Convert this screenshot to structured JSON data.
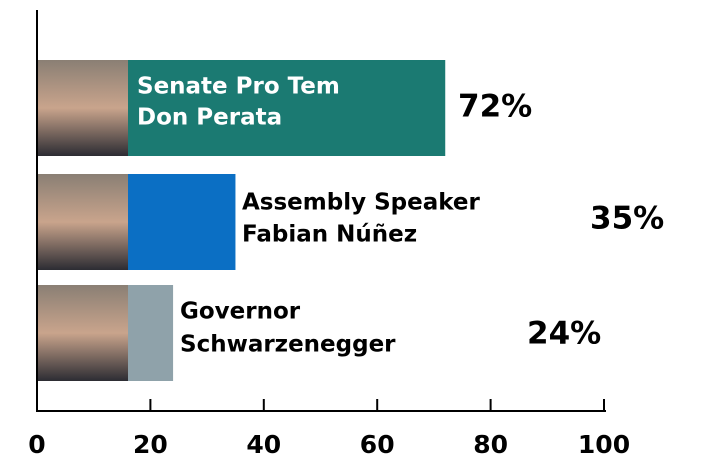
{
  "chart_data": {
    "type": "bar",
    "orientation": "horizontal",
    "categories": [
      [
        "Senate Pro Tem",
        "Don Perata"
      ],
      [
        "Assembly Speaker",
        "Fabian Núñez"
      ],
      [
        "Governor",
        "Schwarzenegger"
      ]
    ],
    "values": [
      72,
      35,
      24
    ],
    "value_labels": [
      "72%",
      "35%",
      "24%"
    ],
    "colors": [
      "#1b7a72",
      "#0b6fc4",
      "#8fa2aa"
    ],
    "xlim": [
      0,
      100
    ],
    "xticks": [
      0,
      20,
      40,
      60,
      80,
      100
    ]
  }
}
